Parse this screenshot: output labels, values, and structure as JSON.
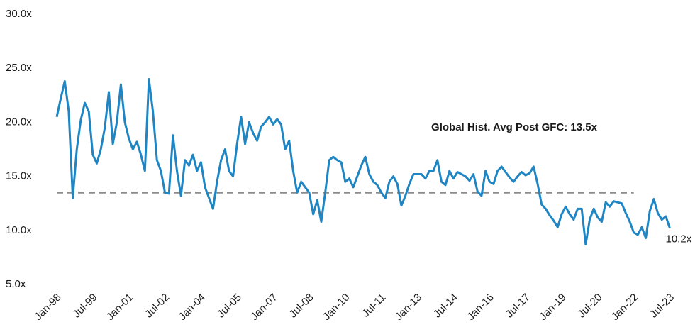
{
  "chart_data": {
    "type": "line",
    "categories": [
      "Jan-98",
      null,
      null,
      null,
      null,
      null,
      null,
      null,
      null,
      "Jul-99",
      null,
      null,
      null,
      null,
      null,
      null,
      null,
      null,
      "Jan-01",
      null,
      null,
      null,
      null,
      null,
      null,
      null,
      null,
      "Jul-02",
      null,
      null,
      null,
      null,
      null,
      null,
      null,
      null,
      "Jan-04",
      null,
      null,
      null,
      null,
      null,
      null,
      null,
      null,
      "Jul-05",
      null,
      null,
      null,
      null,
      null,
      null,
      null,
      null,
      "Jan-07",
      null,
      null,
      null,
      null,
      null,
      null,
      null,
      null,
      "Jul-08",
      null,
      null,
      null,
      null,
      null,
      null,
      null,
      null,
      "Jan-10",
      null,
      null,
      null,
      null,
      null,
      null,
      null,
      null,
      "Jul-11",
      null,
      null,
      null,
      null,
      null,
      null,
      null,
      null,
      "Jan-13",
      null,
      null,
      null,
      null,
      null,
      null,
      null,
      null,
      "Jul-14",
      null,
      null,
      null,
      null,
      null,
      null,
      null,
      null,
      "Jan-16",
      null,
      null,
      null,
      null,
      null,
      null,
      null,
      null,
      "Jul-17",
      null,
      null,
      null,
      null,
      null,
      null,
      null,
      null,
      "Jan-19",
      null,
      null,
      null,
      null,
      null,
      null,
      null,
      null,
      "Jul-20",
      null,
      null,
      null,
      null,
      null,
      null,
      null,
      null,
      "Jan-22",
      null,
      null,
      null,
      null,
      null,
      null,
      null,
      null,
      "Jul-23"
    ],
    "series": [
      {
        "color": "#1f86c3",
        "values": [
          20.5,
          22.2,
          23.8,
          21,
          13,
          17.5,
          20.2,
          21.8,
          21,
          17,
          16.2,
          17.5,
          19.5,
          22.8,
          18,
          20,
          23.5,
          20,
          18.5,
          17.5,
          18.2,
          17,
          15.5,
          24,
          21,
          16.5,
          15.5,
          13.5,
          13.4,
          18.8,
          15.5,
          13.2,
          16.5,
          16,
          17,
          15.5,
          16.3,
          14,
          13,
          12,
          14.5,
          16.5,
          17.5,
          15.5,
          15,
          18,
          20.5,
          18,
          20,
          19,
          18.3,
          19.6,
          20,
          20.5,
          19.8,
          20.3,
          19.8,
          17.5,
          18.3,
          15.5,
          13.5,
          14.5,
          14,
          13.5,
          11.5,
          12.8,
          10.8,
          13.5,
          16.5,
          16.8,
          16.5,
          16.3,
          14.5,
          14.8,
          14,
          15,
          16,
          16.8,
          15.2,
          14.5,
          14.2,
          13.5,
          13,
          14.5,
          15,
          14.3,
          12.3,
          13.2,
          14.3,
          15.2,
          15.2,
          15.2,
          14.8,
          15.5,
          15.5,
          16.5,
          14.5,
          14.2,
          15.5,
          14.8,
          15.4,
          15.2,
          15,
          14.6,
          15.2,
          13.6,
          13.2,
          15.5,
          14.5,
          14.3,
          15.5,
          15.9,
          15.4,
          14.9,
          14.5,
          15,
          15.4,
          15.1,
          15.3,
          15.9,
          14.3,
          12.4,
          12,
          11.4,
          10.9,
          10.3,
          11.5,
          12.2,
          11.5,
          11,
          12,
          12,
          8.7,
          11,
          12,
          11.2,
          10.8,
          12.6,
          12.2,
          12.7,
          12.6,
          12.5,
          11.6,
          10.8,
          9.8,
          9.6,
          10.3,
          9.3,
          11.8,
          12.9,
          11.6,
          11,
          11.3,
          10.2
        ],
        "value_labels": {
          "153": "10.2x"
        }
      }
    ],
    "ylim": [
      5,
      30
    ],
    "yticks": [
      {
        "value": 5,
        "label": "5.0x"
      },
      {
        "value": 10,
        "label": "10.0x"
      },
      {
        "value": 15,
        "label": "15.0x"
      },
      {
        "value": 20,
        "label": "20.0x"
      },
      {
        "value": 25,
        "label": "25.0x"
      },
      {
        "value": 30,
        "label": "30.0x"
      }
    ],
    "reference_line": {
      "value": 13.5,
      "label": "Global Hist. Avg Post GFC: 13.5x",
      "color": "#8c8c8c",
      "from": "Jan-98",
      "to": "Jan-22"
    }
  }
}
